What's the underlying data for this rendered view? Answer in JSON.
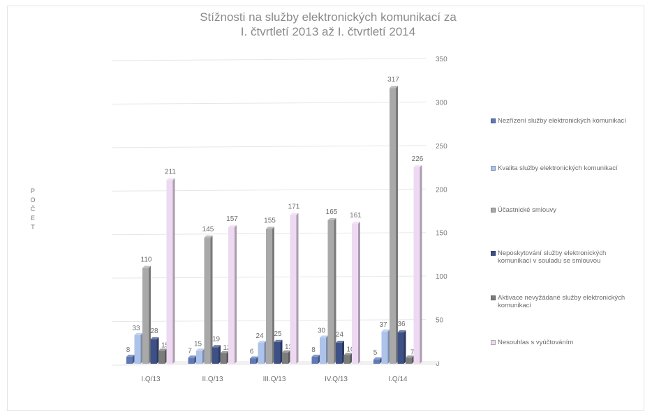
{
  "chart_data": {
    "type": "bar",
    "title": "Stížnosti na služby elektronických komunikací za I. čtvrtletí 2013 až I. čtvrtletí 2014",
    "title_lines": [
      "Stížnosti na služby elektronických komunikací za",
      "I. čtvrtletí 2013 až I. čtvrtletí 2014"
    ],
    "ylabel": "POČET",
    "ylabel_chars": [
      "P",
      "O",
      "Č",
      "E",
      "T"
    ],
    "xlabel": "",
    "ylim": [
      0,
      350
    ],
    "yticks": [
      "0",
      "50",
      "100",
      "150",
      "200",
      "250",
      "300",
      "350"
    ],
    "y_axis_side": "right",
    "grid": true,
    "legend_position": "right",
    "categories": [
      "I.Q/13",
      "II.Q/13",
      "III.Q/13",
      "IV.Q/13",
      "I.Q/14"
    ],
    "series": [
      {
        "name": "Nezřízení služby elektronických komunikací",
        "values": [
          8,
          7,
          6,
          8,
          5
        ],
        "labels": [
          "8",
          "7",
          "6",
          "8",
          "5"
        ],
        "color": "#5f79b5"
      },
      {
        "name": "Kvalita služby elektronických komunikací",
        "values": [
          33,
          15,
          24,
          30,
          37
        ],
        "labels": [
          "33",
          "15",
          "24",
          "30",
          "37"
        ],
        "color": "#aec3ea"
      },
      {
        "name": "Účastnické smlouvy",
        "values": [
          110,
          145,
          155,
          165,
          317
        ],
        "labels": [
          "110",
          "145",
          "155",
          "165",
          "317"
        ],
        "color": "#a9a9a9"
      },
      {
        "name": "Neposkytování služby elektronických komunikací v souladu se smlouvou",
        "values": [
          28,
          19,
          25,
          24,
          36
        ],
        "labels": [
          "28",
          "19",
          "25",
          "24",
          "36"
        ],
        "color": "#3e5186"
      },
      {
        "name": "Aktivace nevyžádané služby elektronických komunikací",
        "values": [
          15,
          12,
          13,
          10,
          7
        ],
        "labels": [
          "15",
          "12",
          "13",
          "10",
          "7"
        ],
        "color": "#7c7c7c"
      },
      {
        "name": "Nesouhlas s vyúčtováním",
        "values": [
          211,
          157,
          171,
          161,
          226
        ],
        "labels": [
          "211",
          "157",
          "171",
          "161",
          "226"
        ],
        "color": "#eed9f2"
      }
    ],
    "legend_lines": [
      [
        "Nezřízení služby elektronických komunikací"
      ],
      [
        "Kvalita služby elektronických komunikací"
      ],
      [
        "Účastnické smlouvy"
      ],
      [
        "Neposkytování služby elektronických",
        "komunikací v souladu se smlouvou"
      ],
      [
        "Aktivace nevyžádané služby elektronických",
        "komunikací"
      ],
      [
        "Nesouhlas s vyúčtováním"
      ]
    ]
  }
}
